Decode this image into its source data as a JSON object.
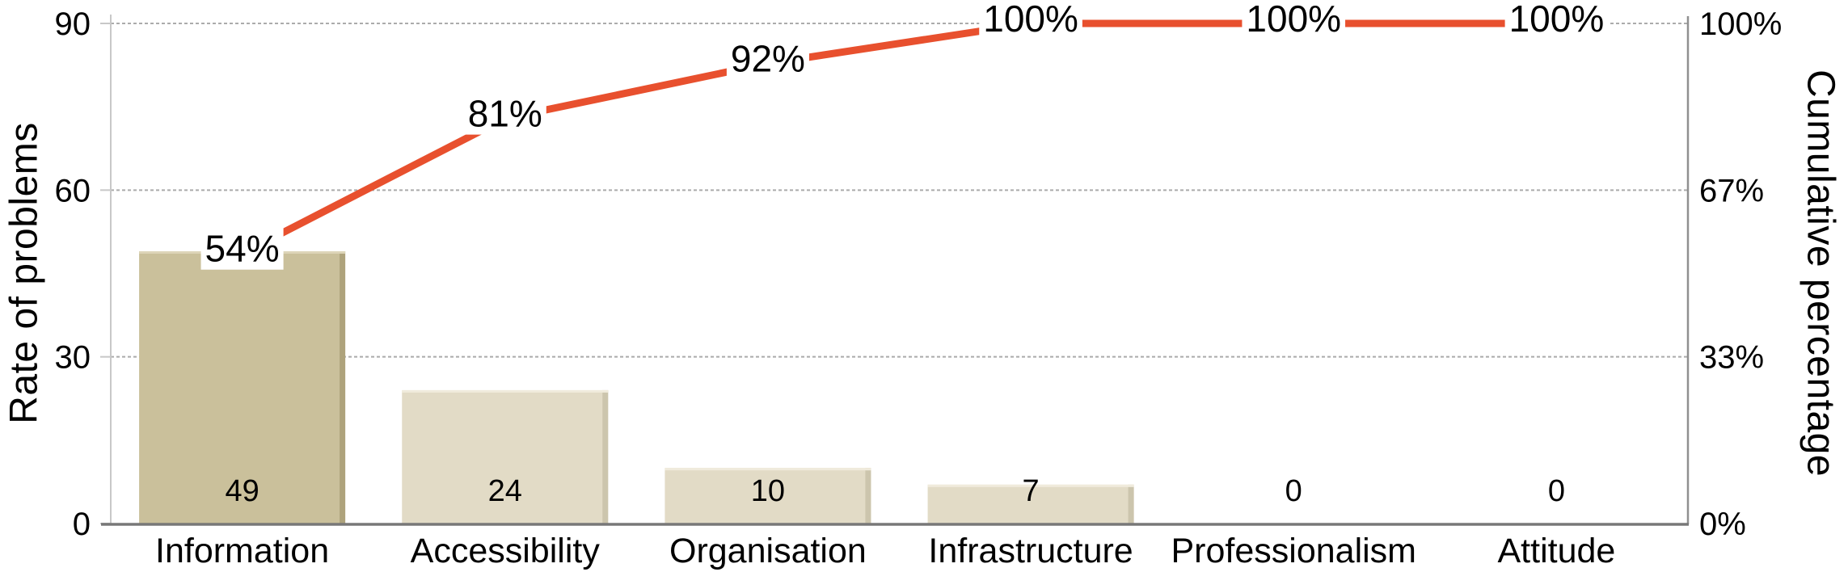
{
  "figure": {
    "left_axis_title": "Rate of problems",
    "right_axis_title": "Cumulative percentage"
  },
  "chart_data": {
    "type": "bar",
    "subtype": "pareto-combo-bar-line",
    "title": "",
    "categories": [
      "Information",
      "Accessibility",
      "Organisation",
      "Infrastructure",
      "Professionalism",
      "Attitude"
    ],
    "series": [
      {
        "name": "Rate of problems",
        "type": "bar",
        "values": [
          49,
          24,
          10,
          7,
          0,
          0
        ],
        "data_labels": [
          "49",
          "24",
          "10",
          "7",
          "0",
          "0"
        ]
      },
      {
        "name": "Cumulative percentage",
        "type": "line",
        "values": [
          54,
          81,
          92,
          100,
          100,
          100
        ],
        "data_labels": [
          "54%",
          "81%",
          "92%",
          "100%",
          "100%",
          "100%"
        ]
      }
    ],
    "left_axis": {
      "title": "Rate of problems",
      "ticks": [
        "0",
        "30",
        "60",
        "90"
      ],
      "tick_values": [
        0,
        30,
        60,
        90
      ],
      "range": [
        0,
        90
      ]
    },
    "right_axis": {
      "title": "Cumulative percentage",
      "ticks": [
        "0%",
        "33%",
        "67%",
        "100%"
      ],
      "tick_values": [
        0,
        33.333,
        66.667,
        100
      ],
      "range": [
        0,
        100
      ]
    },
    "grid": "horizontal-dotted",
    "legend": "none",
    "colors": {
      "bar_primary": "#CAC09B",
      "bar_primary_edge": "#AEA37C",
      "bar_primary_top": "#DDD5B8",
      "bar_secondary": "#E2DBC6",
      "bar_secondary_edge": "#CCC5AD",
      "bar_secondary_top": "#F0EBDC",
      "line": "#E8502E",
      "gridline": "#ABABAB",
      "axis_line": "#C8C8C8",
      "baseline": "#787878",
      "right_border": "#909090",
      "text": "#000000"
    }
  }
}
